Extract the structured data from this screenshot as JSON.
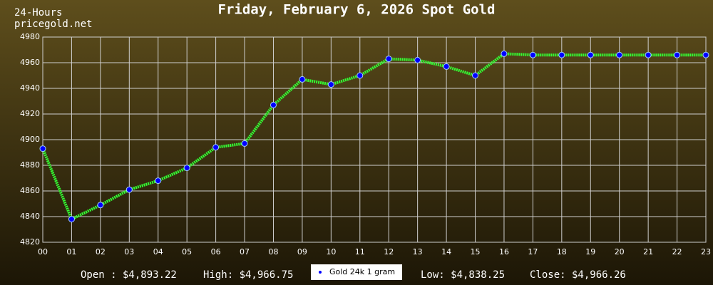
{
  "chart_data": {
    "type": "line",
    "title": "Friday, February 6, 2026 Spot Gold",
    "subtitle": [
      "24-Hours",
      "pricegold.net"
    ],
    "categories": [
      "00",
      "01",
      "02",
      "03",
      "04",
      "05",
      "06",
      "07",
      "08",
      "09",
      "10",
      "11",
      "12",
      "13",
      "14",
      "15",
      "16",
      "17",
      "18",
      "19",
      "20",
      "21",
      "22",
      "23"
    ],
    "series": [
      {
        "name": "Gold 24k 1 gram",
        "color": "#33ff33",
        "marker_color": "#0000ff",
        "values": [
          4893,
          4838,
          4849,
          4861,
          4868,
          4878,
          4894,
          4897,
          4927,
          4947,
          4943,
          4950,
          4963,
          4962,
          4957,
          4950,
          4967,
          4966,
          4966,
          4966,
          4966,
          4966,
          4966,
          4966
        ]
      }
    ],
    "ylim": [
      4820,
      4980
    ],
    "yticks": [
      4820,
      4840,
      4860,
      4880,
      4900,
      4920,
      4940,
      4960,
      4980
    ],
    "grid": true,
    "summary": [
      "Open : $4,893.22",
      "High: $4,966.75",
      "Low: $4,838.25",
      "Close: $4,966.26"
    ]
  }
}
